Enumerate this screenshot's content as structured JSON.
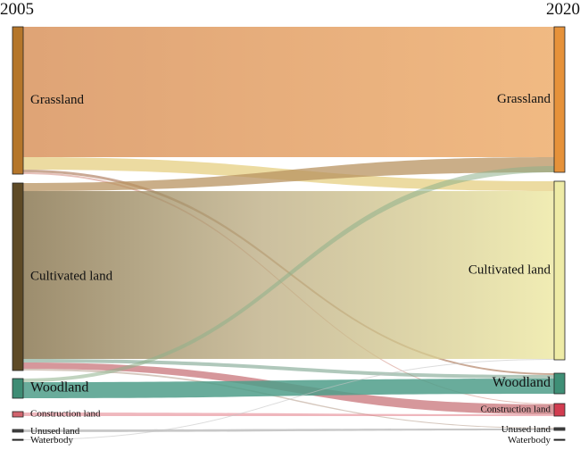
{
  "years": {
    "left": "2005",
    "right": "2020"
  },
  "nodes": [
    {
      "id": "grassland",
      "label": "Grassland",
      "color_left": "#b5762a",
      "color_right": "#e6923a"
    },
    {
      "id": "cultivated",
      "label": "Cultivated land",
      "color_left": "#5e4a26",
      "color_right": "#eeeba6"
    },
    {
      "id": "woodland",
      "label": "Woodland",
      "color_left": "#3e8c74",
      "color_right": "#3f8f76"
    },
    {
      "id": "construction",
      "label": "Construction land",
      "color_left": "#d2646e",
      "color_right": "#d23c50"
    },
    {
      "id": "unused",
      "label": "Unused land",
      "color_left": "#444444",
      "color_right": "#444444"
    },
    {
      "id": "waterbody",
      "label": "Waterbody",
      "color_left": "#333333",
      "color_right": "#333333"
    }
  ],
  "flows": [
    {
      "from": "grassland",
      "to": "grassland",
      "color": "#ea9b52"
    },
    {
      "from": "grassland",
      "to": "cultivated",
      "color": "#e6cf82"
    },
    {
      "from": "grassland",
      "to": "woodland",
      "color": "#b48468"
    },
    {
      "from": "grassland",
      "to": "construction",
      "color": "#d28c80"
    },
    {
      "from": "cultivated",
      "to": "grassland",
      "color": "#b89360"
    },
    {
      "from": "cultivated",
      "to": "cultivated",
      "color": "#d6cd98"
    },
    {
      "from": "cultivated",
      "to": "woodland",
      "color": "#6f9a84"
    },
    {
      "from": "cultivated",
      "to": "construction",
      "color": "#c8747a"
    },
    {
      "from": "cultivated",
      "to": "unused",
      "color": "#b49a88"
    },
    {
      "from": "woodland",
      "to": "woodland",
      "color": "#4f9e8a"
    },
    {
      "from": "woodland",
      "to": "grassland",
      "color": "#8eb08a"
    },
    {
      "from": "construction",
      "to": "construction",
      "color": "#e27c86"
    },
    {
      "from": "unused",
      "to": "unused",
      "color": "#9a9a9a"
    },
    {
      "from": "waterbody",
      "to": "cultivated",
      "color": "#c4c4c4"
    }
  ]
}
